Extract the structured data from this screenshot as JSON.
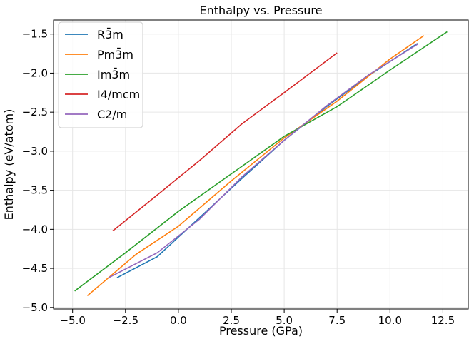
{
  "chart_data": {
    "type": "line",
    "title": "Enthalpy vs. Pressure",
    "xlabel": "Pressure (GPa)",
    "ylabel": "Enthalpy (eV/atom)",
    "xlim": [
      -5.9,
      13.7
    ],
    "ylim": [
      -5.02,
      -1.32
    ],
    "xticks": [
      -5.0,
      -2.5,
      0.0,
      2.5,
      5.0,
      7.5,
      10.0,
      12.5
    ],
    "xtick_labels": [
      "−5.0",
      "−2.5",
      "0.0",
      "2.5",
      "5.0",
      "7.5",
      "10.0",
      "12.5"
    ],
    "yticks": [
      -5.0,
      -4.5,
      -4.0,
      -3.5,
      -3.0,
      -2.5,
      -2.0,
      -1.5
    ],
    "ytick_labels": [
      "−5.0",
      "−4.5",
      "−4.0",
      "−3.5",
      "−3.0",
      "−2.5",
      "−2.0",
      "−1.5"
    ],
    "grid": true,
    "legend_position": "top-left",
    "series": [
      {
        "name": "R3̄m",
        "color": "#1f77b4",
        "x": [
          -2.9,
          -1.0,
          1.0,
          3.0,
          5.0,
          7.0,
          9.0,
          11.3
        ],
        "y": [
          -4.62,
          -4.35,
          -3.85,
          -3.35,
          -2.86,
          -2.43,
          -2.03,
          -1.62
        ]
      },
      {
        "name": "Pm3̄m",
        "color": "#ff7f0e",
        "x": [
          -4.3,
          -2.0,
          0.0,
          2.5,
          5.0,
          7.5,
          10.0,
          11.6
        ],
        "y": [
          -4.85,
          -4.32,
          -3.96,
          -3.38,
          -2.83,
          -2.36,
          -1.82,
          -1.52
        ]
      },
      {
        "name": "Im3̄m",
        "color": "#2ca02c",
        "x": [
          -4.9,
          -2.5,
          0.0,
          2.5,
          5.0,
          7.5,
          10.0,
          12.7
        ],
        "y": [
          -4.79,
          -4.3,
          -3.77,
          -3.29,
          -2.81,
          -2.43,
          -1.96,
          -1.47
        ]
      },
      {
        "name": "I4/mcm",
        "color": "#d62728",
        "x": [
          -3.1,
          -1.0,
          1.0,
          3.0,
          5.0,
          7.5
        ],
        "y": [
          -4.02,
          -3.56,
          -3.12,
          -2.65,
          -2.25,
          -1.74
        ]
      },
      {
        "name": "C2/m",
        "color": "#9467bd",
        "x": [
          -3.3,
          -1.0,
          1.0,
          3.0,
          5.0,
          7.0,
          9.0,
          11.3
        ],
        "y": [
          -4.62,
          -4.3,
          -3.87,
          -3.33,
          -2.86,
          -2.42,
          -2.02,
          -1.63
        ]
      }
    ]
  }
}
